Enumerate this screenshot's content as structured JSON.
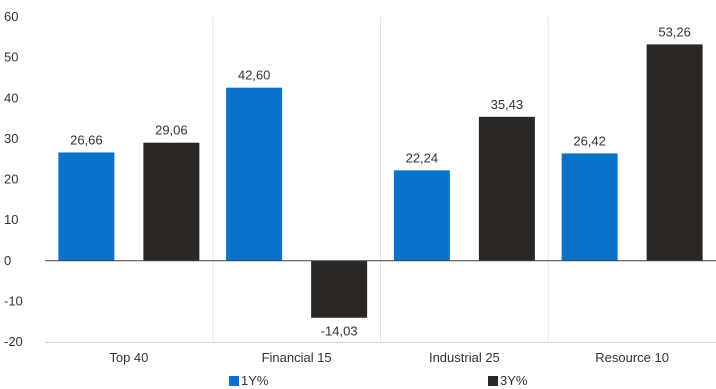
{
  "chart_data": {
    "type": "bar",
    "categories": [
      "Top 40",
      "Financial 15",
      "Industrial 25",
      "Resource 10"
    ],
    "series": [
      {
        "name": "1Y%",
        "values": [
          26.66,
          42.6,
          22.24,
          26.42
        ],
        "labels": [
          "26,66",
          "42,60",
          "22,24",
          "26,42"
        ],
        "color": "#0a72c8"
      },
      {
        "name": "3Y%",
        "values": [
          29.06,
          -14.03,
          35.43,
          53.26
        ],
        "labels": [
          "29,06",
          "-14,03",
          "35,43",
          "53,26"
        ],
        "color": "#2b2725"
      }
    ],
    "ylim": [
      -20,
      60
    ],
    "yticks": [
      -20,
      -10,
      0,
      10,
      20,
      30,
      40,
      50,
      60
    ],
    "ytick_labels": [
      "-20",
      "-10",
      "0",
      "10",
      "20",
      "30",
      "40",
      "50",
      "60"
    ],
    "grid": "vertical category separators",
    "legend_position": "bottom",
    "title": "",
    "xlabel": "",
    "ylabel": ""
  }
}
